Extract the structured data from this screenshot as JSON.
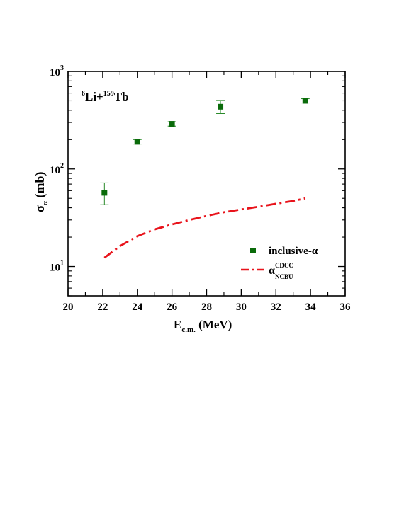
{
  "chart_data": {
    "type": "scatter",
    "annotation": {
      "base": "Li+",
      "sup1": "6",
      "sup2": "159",
      "tail": "Tb"
    },
    "xlabel": {
      "main": "E",
      "sub": "c.m.",
      "unit": " (MeV)"
    },
    "ylabel": {
      "main": "σ",
      "sub": "α",
      "unit": " (mb)"
    },
    "xlim": [
      20,
      36
    ],
    "ylim": [
      5,
      1000
    ],
    "yscale": "log",
    "x_ticks": [
      20,
      22,
      24,
      26,
      28,
      30,
      32,
      34,
      36
    ],
    "x_tick_labels": [
      "20",
      "22",
      "24",
      "26",
      "28",
      "30",
      "32",
      "34",
      "36"
    ],
    "y_ticks": [
      {
        "base": "10",
        "exp": "1",
        "value": 10
      },
      {
        "base": "10",
        "exp": "2",
        "value": 100
      },
      {
        "base": "10",
        "exp": "3",
        "value": 1000
      }
    ],
    "legend_position": "bottom-right",
    "series": [
      {
        "name": "inclusive-α",
        "kind": "points",
        "color": "#0a6b0a",
        "points": [
          {
            "x": 22.1,
            "y": 57,
            "yerr_low": 43,
            "yerr_high": 72
          },
          {
            "x": 24.0,
            "y": 190,
            "yerr_low": 180,
            "yerr_high": 200
          },
          {
            "x": 26.0,
            "y": 290,
            "yerr_low": 275,
            "yerr_high": 305
          },
          {
            "x": 28.8,
            "y": 435,
            "yerr_low": 370,
            "yerr_high": 505
          },
          {
            "x": 33.7,
            "y": 500,
            "yerr_low": 475,
            "yerr_high": 525
          }
        ]
      },
      {
        "name": "α",
        "name_sup": "CDCC",
        "name_sub": "NCBU",
        "kind": "line",
        "style": "dash-dot",
        "color": "#e8131b",
        "points": [
          {
            "x": 22.1,
            "y": 12.3
          },
          {
            "x": 23.0,
            "y": 16.2
          },
          {
            "x": 24.0,
            "y": 20.5
          },
          {
            "x": 25.0,
            "y": 24.0
          },
          {
            "x": 26.0,
            "y": 27.0
          },
          {
            "x": 27.0,
            "y": 30.0
          },
          {
            "x": 28.0,
            "y": 33.0
          },
          {
            "x": 29.0,
            "y": 36.0
          },
          {
            "x": 30.0,
            "y": 38.5
          },
          {
            "x": 31.0,
            "y": 41.0
          },
          {
            "x": 32.0,
            "y": 44.0
          },
          {
            "x": 33.0,
            "y": 47.0
          },
          {
            "x": 33.7,
            "y": 50.0
          }
        ]
      }
    ]
  }
}
